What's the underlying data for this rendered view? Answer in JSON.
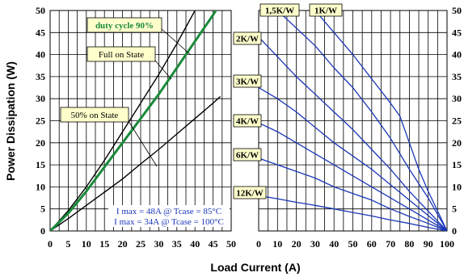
{
  "x_axis_title": "Load Current (A)",
  "y_axis_title": "Power Dissipation (W)",
  "chart_data": [
    {
      "type": "line",
      "panel": "left",
      "xlim": [
        0,
        50
      ],
      "ylim": [
        0,
        50
      ],
      "x_ticks": [
        "0",
        "5",
        "10",
        "15",
        "20",
        "25",
        "30",
        "35",
        "40",
        "45",
        "50"
      ],
      "y_ticks": [
        "0",
        "5",
        "10",
        "15",
        "20",
        "25",
        "30",
        "35",
        "40",
        "45",
        "50"
      ],
      "grid": true,
      "series": [
        {
          "name": "Full on State",
          "color": "#000000",
          "x": [
            0,
            5,
            10,
            15,
            20,
            25,
            30,
            35,
            40,
            43.5
          ],
          "y": [
            0,
            4.6,
            10,
            16,
            22.5,
            29,
            35.5,
            42.5,
            50,
            55
          ]
        },
        {
          "name": "duty cycle 90%",
          "color": "#1a8a3a",
          "x": [
            0,
            5,
            10,
            15,
            20,
            25,
            30,
            35,
            40,
            45,
            48
          ],
          "y": [
            0,
            4,
            9,
            14.5,
            20,
            25.5,
            31,
            37,
            43,
            49,
            53
          ]
        },
        {
          "name": "50% on State",
          "color": "#000000",
          "x": [
            0,
            5,
            10,
            15,
            20,
            25,
            30,
            35,
            40,
            45,
            47
          ],
          "y": [
            0,
            2.8,
            5.8,
            8.8,
            11.8,
            15.2,
            18.5,
            22,
            25.5,
            29,
            30.5
          ]
        }
      ],
      "labels": [
        "duty cycle 90%",
        "Full on State",
        "50% on State"
      ],
      "notes": [
        "I max = 48A @ Tcase = 85°C",
        "I max = 34A @ Tcase = 100°C"
      ]
    },
    {
      "type": "line",
      "panel": "right",
      "xlim": [
        0,
        100
      ],
      "ylim": [
        0,
        50
      ],
      "x_ticks": [
        "0",
        "10",
        "20",
        "30",
        "40",
        "50",
        "60",
        "70",
        "80",
        "90",
        "100"
      ],
      "y_ticks": [
        "0",
        "5",
        "10",
        "15",
        "20",
        "25",
        "30",
        "35",
        "40",
        "45",
        "50"
      ],
      "grid": true,
      "series_color": "#1a36b8",
      "series": [
        {
          "name": "1,5K/W",
          "x": [
            10,
            20,
            30,
            40,
            50,
            60,
            70,
            80,
            90,
            100
          ],
          "y": [
            50,
            46,
            42,
            37,
            32.5,
            27,
            21,
            14,
            7.5,
            0
          ]
        },
        {
          "name": "1K/W",
          "x": [
            30,
            40,
            50,
            60,
            70,
            75,
            80,
            85,
            90,
            95,
            100
          ],
          "y": [
            50,
            45,
            40,
            34.5,
            29,
            26,
            20,
            14,
            9,
            4.5,
            0
          ]
        },
        {
          "name": "2K/W",
          "x": [
            0,
            10,
            20,
            30,
            40,
            50,
            60,
            70,
            80,
            90,
            100
          ],
          "y": [
            44,
            39.5,
            35,
            31,
            27,
            23,
            18.5,
            14,
            9,
            4.5,
            0
          ]
        },
        {
          "name": "3K/W",
          "x": [
            0,
            10,
            20,
            30,
            40,
            50,
            60,
            70,
            80,
            90,
            100
          ],
          "y": [
            32.5,
            30,
            27,
            23.5,
            20,
            17,
            14,
            10.5,
            7,
            3.5,
            0
          ]
        },
        {
          "name": "4K/W",
          "x": [
            0,
            10,
            20,
            30,
            40,
            50,
            60,
            70,
            80,
            90,
            100
          ],
          "y": [
            24.5,
            22.5,
            20,
            17.5,
            15,
            12.5,
            10,
            7.5,
            5,
            2.5,
            0
          ]
        },
        {
          "name": "6K/W",
          "x": [
            0,
            10,
            20,
            30,
            40,
            50,
            60,
            70,
            80,
            90,
            100
          ],
          "y": [
            16.5,
            15,
            13.5,
            12,
            10,
            8.5,
            7,
            5,
            3.3,
            1.7,
            0
          ]
        },
        {
          "name": "12K/W",
          "x": [
            0,
            10,
            20,
            30,
            40,
            50,
            60,
            70,
            80,
            90,
            100
          ],
          "y": [
            8,
            7.3,
            6.5,
            5.8,
            5,
            4.2,
            3.4,
            2.5,
            1.7,
            0.8,
            0
          ]
        }
      ],
      "labels": [
        "1,5K/W",
        "1K/W",
        "2K/W",
        "3K/W",
        "4K/W",
        "6K/W",
        "12K/W"
      ]
    }
  ]
}
